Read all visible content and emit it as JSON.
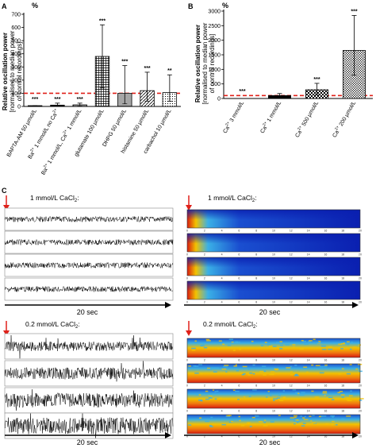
{
  "chart_data": [
    {
      "panel": "A",
      "type": "bar",
      "unit": "%",
      "ylabel_line1": "Relative oscillation power",
      "ylabel_line2": "[normalised to median power",
      "ylabel_line3": "of control recordings]",
      "yticks": [
        0,
        100,
        200,
        300,
        400,
        500,
        600,
        700
      ],
      "ylim": [
        0,
        700
      ],
      "reference_line": 100,
      "categories": [
        {
          "pre": "BAPTA-AM 50 µmol/L",
          "sup": "",
          "post": ""
        },
        {
          "pre": "Ba",
          "sup": "2+",
          "post": " 1 mmol/L no Ca",
          "sup2": "2+"
        },
        {
          "pre": "Ba",
          "sup": "2+",
          "post": " 1 mmol/L, Ca",
          "sup2": "2+",
          "post2": " 1 mmol/L"
        },
        {
          "pre": "glutamate 100 µmol/L",
          "sup": "",
          "post": ""
        },
        {
          "pre": "DHPG 50 µmol/L",
          "sup": "",
          "post": ""
        },
        {
          "pre": "histamine 50 µmol/L",
          "sup": "",
          "post": ""
        },
        {
          "pre": "carbachol 10 µmol/L",
          "sup": "",
          "post": ""
        }
      ],
      "values": [
        2,
        10,
        12,
        380,
        100,
        120,
        105
      ],
      "whisker_low": [
        0,
        0,
        2,
        140,
        20,
        40,
        40
      ],
      "whisker_high": [
        6,
        25,
        25,
        620,
        310,
        260,
        240
      ],
      "significance": [
        "***",
        "***",
        "***",
        "***",
        "***",
        "***",
        "**"
      ],
      "fills": [
        "solid",
        "solid",
        "vlines",
        "grid",
        "hlines",
        "diag",
        "dots"
      ]
    },
    {
      "panel": "B",
      "type": "bar",
      "unit": "%",
      "ylabel_line1": "Relative oscillation power",
      "ylabel_line2": "[normalised to median power",
      "ylabel_line3": "of control recordings]",
      "yticks": [
        0,
        500,
        1000,
        1500,
        2000,
        2500,
        3000
      ],
      "ylim": [
        0,
        3000
      ],
      "reference_line": 100,
      "categories": [
        {
          "pre": "Ca",
          "sup": "2+",
          "post": " 3 mmol/L"
        },
        {
          "pre": "Ca",
          "sup": "2+",
          "post": " 1 mmol/L"
        },
        {
          "pre": "Ca",
          "sup": "2+",
          "post": " 500 µmol/L"
        },
        {
          "pre": "Ca",
          "sup": "2+",
          "post": " 200 µmol/L"
        }
      ],
      "values": [
        0,
        100,
        300,
        1650
      ],
      "whisker_low": [
        0,
        40,
        120,
        800
      ],
      "whisker_high": [
        0,
        170,
        520,
        2850
      ],
      "significance": [
        "***",
        "",
        "***",
        "***"
      ],
      "fills": [
        "none",
        "solid",
        "check",
        "checkfine"
      ]
    }
  ],
  "panel_c": {
    "label": "C",
    "condition_top": "1 mmol/L CaCl",
    "condition_bottom": "0.2 mmol/L CaCl",
    "subscript": "2",
    "colon": ":",
    "time_bar": "20 sec",
    "spectrogram_ticks": [
      "0",
      "2",
      "4",
      "6",
      "8",
      "10",
      "12",
      "14",
      "16",
      "18",
      "20"
    ]
  },
  "colors": {
    "reference_line": "#e0211a",
    "arrow": "#e0211a",
    "spectro_low": "#0a1fb0",
    "spectro_high": "#d81b10"
  }
}
